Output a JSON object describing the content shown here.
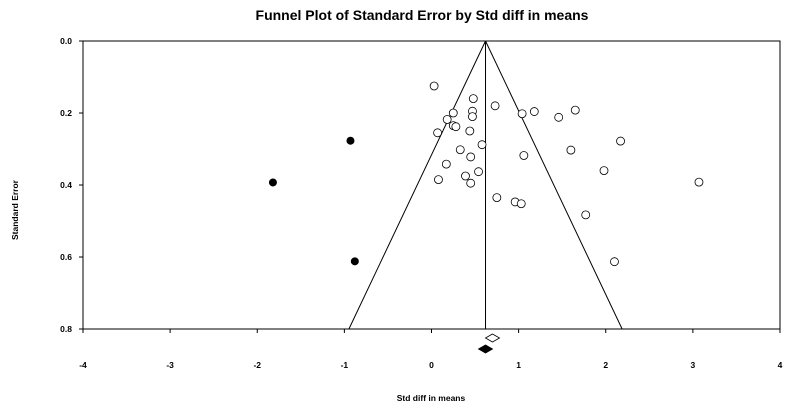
{
  "chart_data": {
    "type": "scatter",
    "title": "Funnel Plot of Standard Error by Std diff in means",
    "xlabel": "Std diff in means",
    "ylabel": "Standard Error",
    "xlim": [
      -4,
      4
    ],
    "ylim": [
      0.0,
      0.8
    ],
    "y_inverted": true,
    "xticks": [
      "-4",
      "-3",
      "-2",
      "-1",
      "0",
      "1",
      "2",
      "3",
      "4"
    ],
    "yticks": [
      "0.0",
      "0.2",
      "0.4",
      "0.6",
      "0.8"
    ],
    "grid": false,
    "funnel": {
      "center": 0.62,
      "apex_se": 0.0,
      "base_se": 0.8
    },
    "series": [
      {
        "marker": "open-circle",
        "points": [
          {
            "x": 0.03,
            "y": 0.125
          },
          {
            "x": 0.48,
            "y": 0.16
          },
          {
            "x": 0.73,
            "y": 0.18
          },
          {
            "x": 0.47,
            "y": 0.195
          },
          {
            "x": 1.18,
            "y": 0.196
          },
          {
            "x": 1.65,
            "y": 0.192
          },
          {
            "x": 1.04,
            "y": 0.202
          },
          {
            "x": 0.25,
            "y": 0.2
          },
          {
            "x": 0.47,
            "y": 0.21
          },
          {
            "x": 0.18,
            "y": 0.218
          },
          {
            "x": 1.46,
            "y": 0.212
          },
          {
            "x": 0.25,
            "y": 0.235
          },
          {
            "x": 0.28,
            "y": 0.238
          },
          {
            "x": 0.44,
            "y": 0.25
          },
          {
            "x": 0.07,
            "y": 0.255
          },
          {
            "x": 2.17,
            "y": 0.278
          },
          {
            "x": 0.58,
            "y": 0.288
          },
          {
            "x": 0.33,
            "y": 0.302
          },
          {
            "x": 1.6,
            "y": 0.303
          },
          {
            "x": 1.06,
            "y": 0.318
          },
          {
            "x": 0.45,
            "y": 0.322
          },
          {
            "x": 0.17,
            "y": 0.342
          },
          {
            "x": 1.98,
            "y": 0.36
          },
          {
            "x": 0.54,
            "y": 0.363
          },
          {
            "x": 0.39,
            "y": 0.375
          },
          {
            "x": 0.08,
            "y": 0.385
          },
          {
            "x": 0.45,
            "y": 0.395
          },
          {
            "x": 3.07,
            "y": 0.392
          },
          {
            "x": 0.75,
            "y": 0.435
          },
          {
            "x": 0.96,
            "y": 0.447
          },
          {
            "x": 1.03,
            "y": 0.452
          },
          {
            "x": 1.77,
            "y": 0.483
          },
          {
            "x": 2.1,
            "y": 0.613
          }
        ]
      },
      {
        "marker": "filled-circle",
        "points": [
          {
            "x": -0.93,
            "y": 0.277
          },
          {
            "x": -1.82,
            "y": 0.393
          },
          {
            "x": -0.88,
            "y": 0.612
          }
        ]
      }
    ],
    "summary_diamonds": [
      {
        "marker": "open-diamond",
        "center": 0.7
      },
      {
        "marker": "filled-diamond",
        "center": 0.62
      }
    ]
  }
}
